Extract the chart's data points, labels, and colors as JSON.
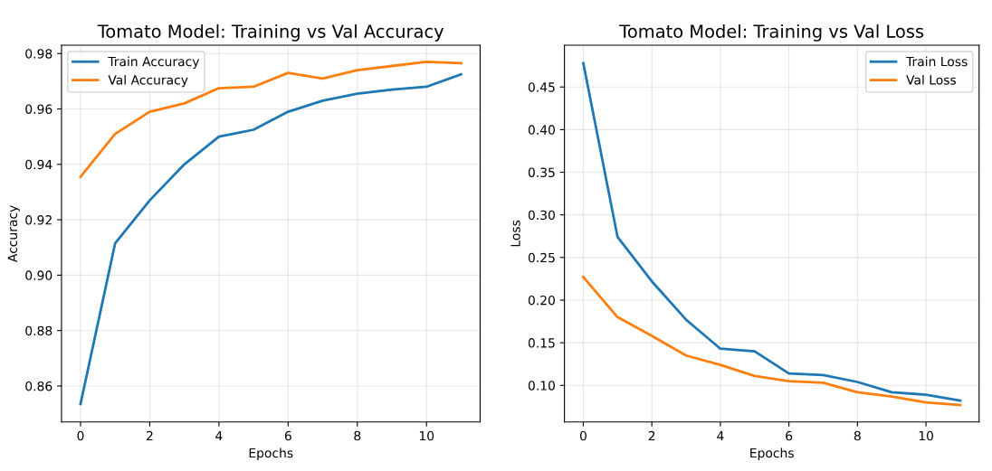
{
  "chart_data": [
    {
      "type": "line",
      "title": "Tomato Model: Training vs Val Accuracy",
      "xlabel": "Epochs",
      "ylabel": "Accuracy",
      "x": [
        0,
        1,
        2,
        3,
        4,
        5,
        6,
        7,
        8,
        9,
        10,
        11
      ],
      "series": [
        {
          "name": "Train Accuracy",
          "color": "#1f77b4",
          "values": [
            0.8535,
            0.9115,
            0.927,
            0.94,
            0.95,
            0.9525,
            0.959,
            0.963,
            0.9655,
            0.967,
            0.968,
            0.9725
          ]
        },
        {
          "name": "Val Accuracy",
          "color": "#ff7f0e",
          "values": [
            0.9355,
            0.951,
            0.959,
            0.962,
            0.9675,
            0.968,
            0.973,
            0.971,
            0.974,
            0.9755,
            0.977,
            0.9765
          ]
        }
      ],
      "xlim": [
        -0.55,
        11.55
      ],
      "ylim": [
        0.847,
        0.983
      ],
      "xticks": [
        0,
        2,
        4,
        6,
        8,
        10
      ],
      "yticks": [
        0.86,
        0.88,
        {
          "value": 0.9,
          "label": "0.90"
        },
        0.92,
        0.94,
        0.96,
        0.98
      ],
      "grid": true,
      "legend": "top left"
    },
    {
      "type": "line",
      "title": "Tomato Model: Training vs Val Loss",
      "xlabel": "Epochs",
      "ylabel": "Loss",
      "x": [
        0,
        1,
        2,
        3,
        4,
        5,
        6,
        7,
        8,
        9,
        10,
        11
      ],
      "series": [
        {
          "name": "Train Loss",
          "color": "#1f77b4",
          "values": [
            0.478,
            0.274,
            0.222,
            0.177,
            0.143,
            0.14,
            0.114,
            0.112,
            0.104,
            0.092,
            0.089,
            0.082
          ]
        },
        {
          "name": "Val Loss",
          "color": "#ff7f0e",
          "values": [
            0.227,
            0.18,
            0.158,
            0.135,
            0.124,
            0.111,
            0.105,
            0.103,
            0.092,
            0.087,
            0.08,
            0.077
          ]
        }
      ],
      "xlim": [
        -0.55,
        11.55
      ],
      "ylim": [
        0.057,
        0.499
      ],
      "xticks": [
        0,
        2,
        4,
        6,
        8,
        10
      ],
      "yticks": [
        {
          "value": 0.1,
          "label": "0.10"
        },
        0.15,
        {
          "value": 0.2,
          "label": "0.20"
        },
        0.25,
        {
          "value": 0.3,
          "label": "0.30"
        },
        0.35,
        {
          "value": 0.4,
          "label": "0.40"
        },
        0.45
      ],
      "grid": true,
      "legend": "top right"
    }
  ]
}
